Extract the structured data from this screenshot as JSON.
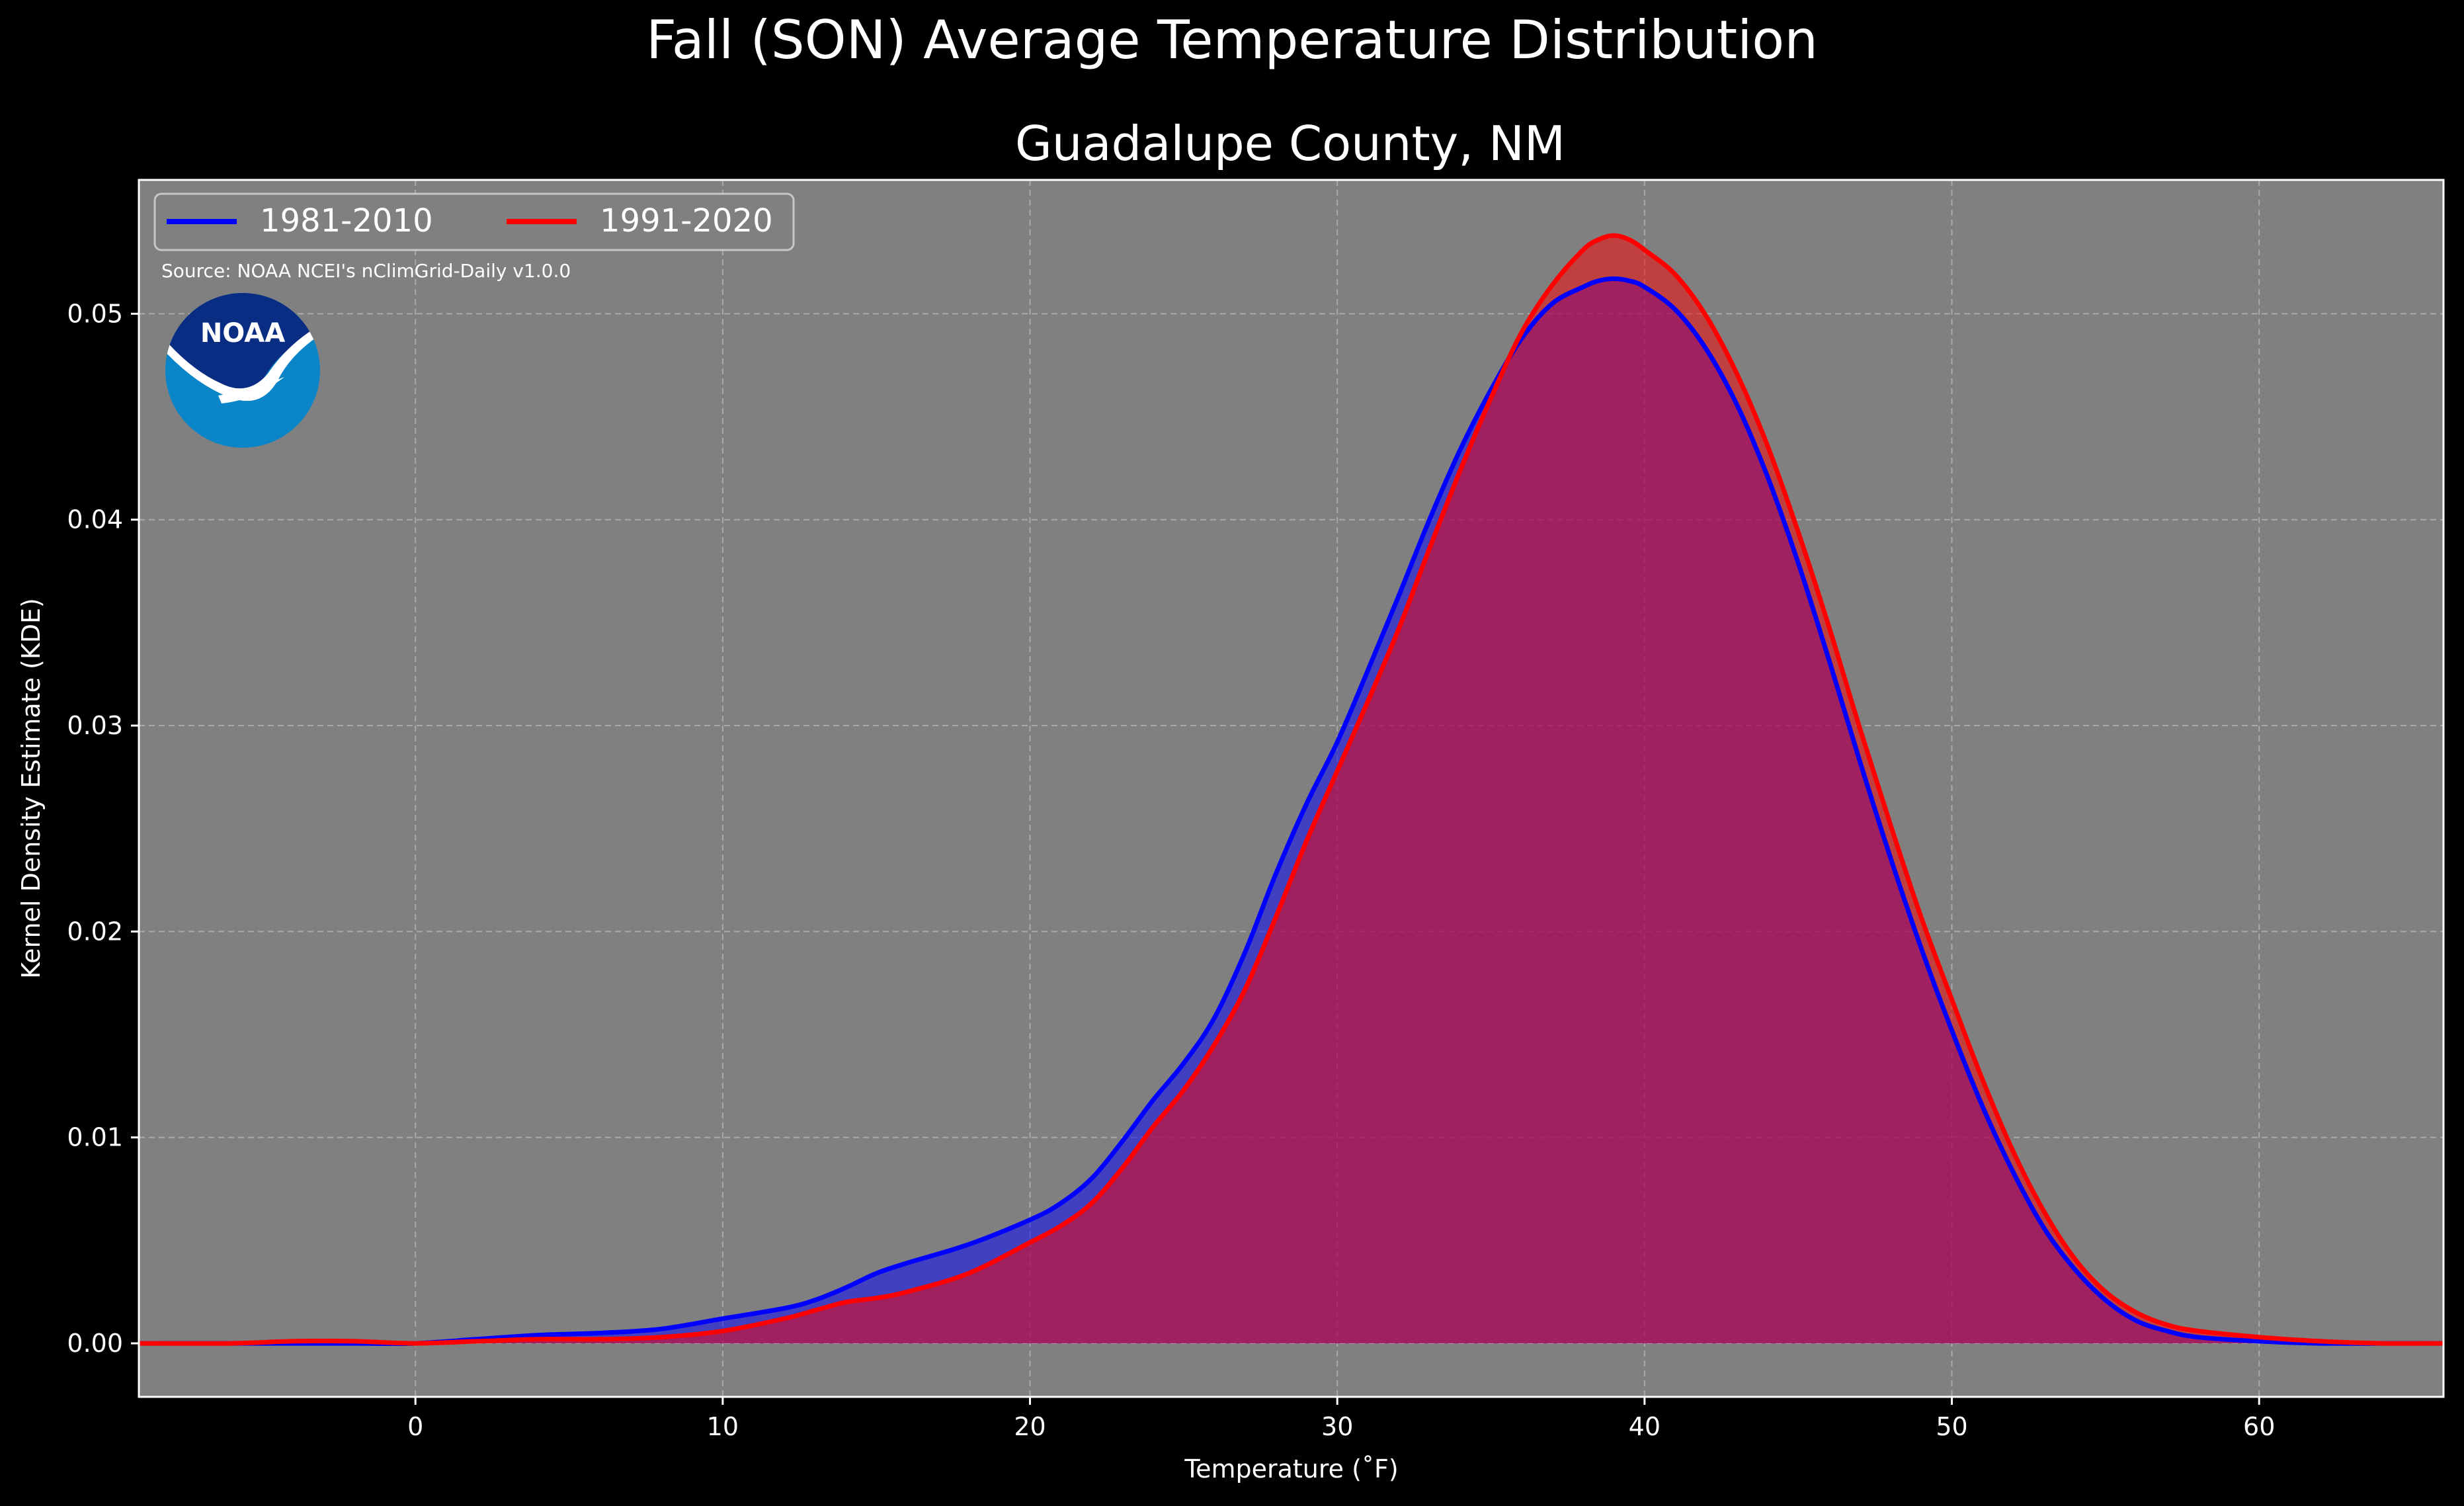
{
  "suptitle": "Fall (SON) Average Temperature Distribution",
  "source_note": "Source: NOAA NCEI's nClimGrid-Daily v1.0.0",
  "logo": {
    "icon": "noaa-logo",
    "text": "NOAA"
  },
  "colors": {
    "background": "#000000",
    "plot_background": "#808080",
    "text": "#ffffff",
    "series_1981_2010": "#0000ff",
    "series_1991_2020": "#ff0000",
    "noaa_dark_blue": "#0a2d84",
    "noaa_light_blue": "#0a85c8"
  },
  "chart_data": {
    "type": "area",
    "title": "Guadalupe County, NM",
    "xlabel": "Temperature ($^\\circ$F)",
    "ylabel": "Kernel Density Estimate (KDE)",
    "xlim": [
      -9,
      66
    ],
    "ylim": [
      -0.0026,
      0.0565
    ],
    "xticks": [
      0,
      10,
      20,
      30,
      40,
      50,
      60
    ],
    "xtick_labels": [
      "0",
      "10",
      "20",
      "30",
      "40",
      "50",
      "60"
    ],
    "yticks": [
      0.0,
      0.01,
      0.02,
      0.03,
      0.04,
      0.05
    ],
    "ytick_labels": [
      "0.00",
      "0.01",
      "0.02",
      "0.03",
      "0.04",
      "0.05"
    ],
    "grid": true,
    "legend": {
      "placement": "top-left",
      "columns": 2
    },
    "series": [
      {
        "name": "1981-2010",
        "color": "#0000ff",
        "x": [
          -9,
          -6,
          -4,
          -2,
          0,
          2,
          4,
          6,
          8,
          10,
          12,
          13,
          14,
          15,
          16,
          18,
          20,
          21,
          22,
          23,
          24,
          25,
          26,
          27,
          28,
          29,
          30,
          31,
          32,
          33,
          34,
          35,
          36,
          37,
          38,
          38.5,
          39,
          39.5,
          40,
          41,
          42,
          43,
          44,
          45,
          46,
          47,
          48,
          49,
          50,
          51,
          52,
          53,
          54,
          55,
          56,
          57,
          58,
          60,
          62,
          64,
          66
        ],
        "y": [
          0.0,
          0.0,
          0.0,
          0.0,
          0.0,
          0.0002,
          0.0004,
          0.0005,
          0.0007,
          0.0012,
          0.0017,
          0.0021,
          0.0027,
          0.0034,
          0.0039,
          0.0048,
          0.006,
          0.0068,
          0.008,
          0.0098,
          0.0118,
          0.0136,
          0.0158,
          0.019,
          0.0228,
          0.0262,
          0.0292,
          0.0327,
          0.0363,
          0.04,
          0.0434,
          0.0463,
          0.0488,
          0.0505,
          0.0513,
          0.0516,
          0.0517,
          0.0516,
          0.0513,
          0.0502,
          0.0483,
          0.0456,
          0.0421,
          0.0379,
          0.0332,
          0.0283,
          0.0236,
          0.0192,
          0.0152,
          0.0115,
          0.0083,
          0.0056,
          0.0036,
          0.0021,
          0.0011,
          0.0006,
          0.0003,
          0.0001,
          0.0,
          0.0,
          0.0
        ]
      },
      {
        "name": "1991-2020",
        "color": "#ff0000",
        "x": [
          -9,
          -6,
          -4,
          -2,
          0,
          2,
          4,
          6,
          8,
          10,
          12,
          13,
          14,
          15,
          16,
          18,
          20,
          21,
          22,
          23,
          24,
          25,
          26,
          27,
          28,
          29,
          30,
          31,
          32,
          33,
          34,
          35,
          36,
          37,
          38,
          38.5,
          39,
          39.5,
          40,
          41,
          42,
          43,
          44,
          45,
          46,
          47,
          48,
          49,
          50,
          51,
          52,
          53,
          54,
          55,
          56,
          57,
          58,
          60,
          62,
          64,
          66
        ],
        "y": [
          0.0,
          0.0,
          0.0001,
          0.0001,
          0.0,
          0.0001,
          0.0002,
          0.0002,
          0.0003,
          0.0006,
          0.0012,
          0.0016,
          0.002,
          0.0022,
          0.0025,
          0.0034,
          0.0049,
          0.0057,
          0.0068,
          0.0085,
          0.0105,
          0.0123,
          0.0145,
          0.0172,
          0.0207,
          0.0244,
          0.0278,
          0.0312,
          0.0347,
          0.0386,
          0.0424,
          0.0459,
          0.0491,
          0.0514,
          0.0531,
          0.0536,
          0.0538,
          0.0536,
          0.0531,
          0.0519,
          0.0499,
          0.0471,
          0.0436,
          0.0394,
          0.0348,
          0.0299,
          0.0252,
          0.0207,
          0.0167,
          0.0128,
          0.0093,
          0.0064,
          0.0041,
          0.0025,
          0.0015,
          0.0009,
          0.0006,
          0.0003,
          0.0001,
          0.0,
          0.0
        ]
      }
    ]
  }
}
